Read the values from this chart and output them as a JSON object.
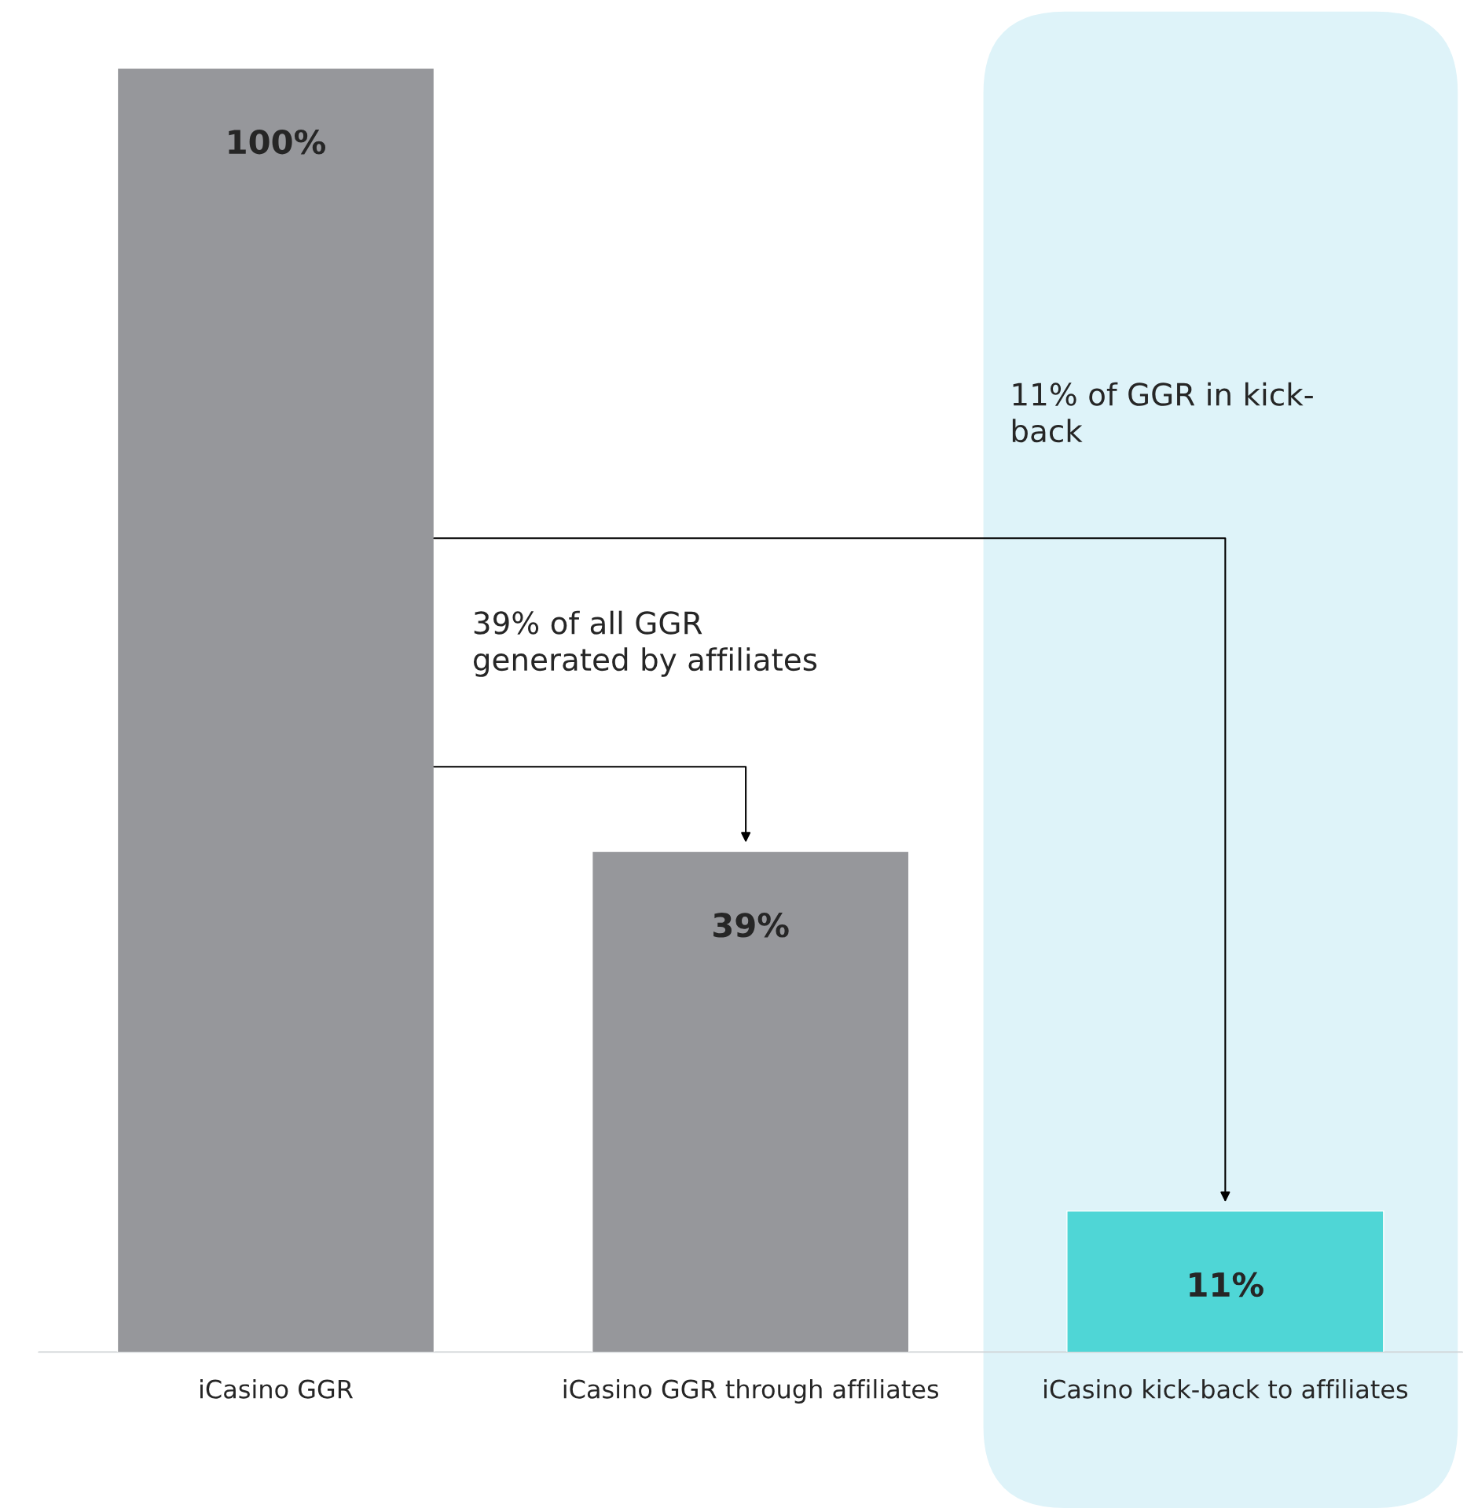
{
  "chart_data": {
    "type": "bar",
    "categories": [
      "iCasino GGR",
      "iCasino GGR through affiliates",
      "iCasino kick-back to affiliates"
    ],
    "values": [
      100,
      39,
      11
    ],
    "colors": [
      "#96979b",
      "#96979b",
      "#4fd6d6"
    ],
    "value_labels": [
      "100%",
      "39%",
      "11%"
    ],
    "annotations": [
      "39% of all GGR\ngenerated by affiliates",
      "11% of GGR in kick-\nback"
    ],
    "grid": false,
    "legend": false
  }
}
